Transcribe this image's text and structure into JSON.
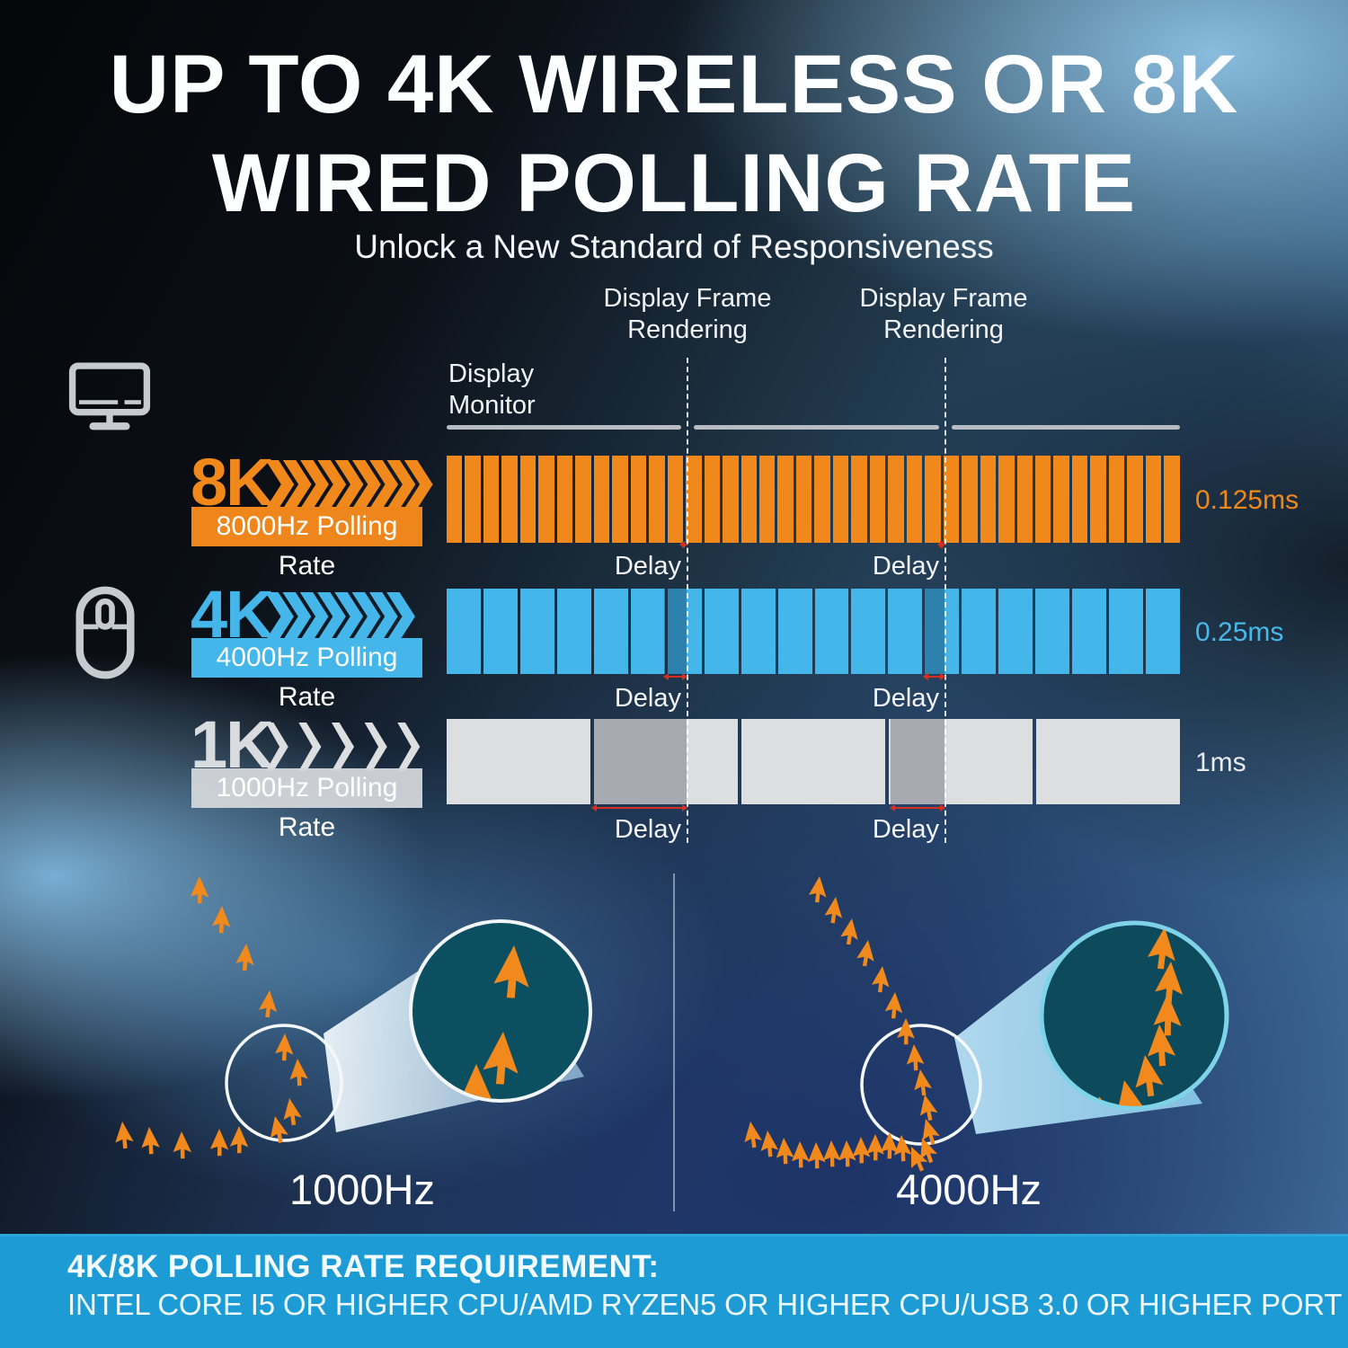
{
  "title": {
    "line1": "UP TO 4K WIRELESS OR 8K",
    "line2": "WIRED POLLING RATE",
    "subtitle": "Unlock a New Standard of Responsiveness"
  },
  "timing_diagram": {
    "monitor_label_line1": "Display",
    "monitor_label_line2": "Monitor",
    "frame_markers": [
      {
        "label_line1": "Display Frame",
        "label_line2": "Rendering"
      },
      {
        "label_line1": "Display Frame",
        "label_line2": "Rendering"
      }
    ],
    "delay_label": "Delay",
    "rows": [
      {
        "badge": "8K",
        "rate_label": "8000Hz Polling Rate",
        "interval_label": "0.125ms",
        "segments": 40,
        "chevrons": 9,
        "chevron_style": "thick",
        "color": "#f0881c"
      },
      {
        "badge": "4K",
        "rate_label": "4000Hz Polling Rate",
        "interval_label": "0.25ms",
        "segments": 20,
        "chevrons": 8,
        "chevron_style": "thick",
        "color": "#45b6e9"
      },
      {
        "badge": "1K",
        "rate_label": "1000Hz Polling Rate",
        "interval_label": "1ms",
        "segments": 5,
        "chevrons": 5,
        "chevron_style": "thin",
        "color": "#dcdee0"
      }
    ]
  },
  "comparison": {
    "left_label": "1000Hz",
    "right_label": "4000Hz"
  },
  "footer": {
    "line1": "4K/8K POLLING RATE REQUIREMENT:",
    "line2": "INTEL CORE I5 OR HIGHER CPU/AMD RYZEN5 OR HIGHER CPU/USB 3.0 OR HIGHER PORT"
  },
  "colors": {
    "orange": "#f0881c",
    "blue": "#45b6e9",
    "gray": "#dcdee0",
    "banner_blue": "#1c9bd5",
    "delay_marker_red": "#d62f22",
    "magnifier_teal": "#0c4f60",
    "magnifier_ring_cyan": "#7fd3e9"
  }
}
